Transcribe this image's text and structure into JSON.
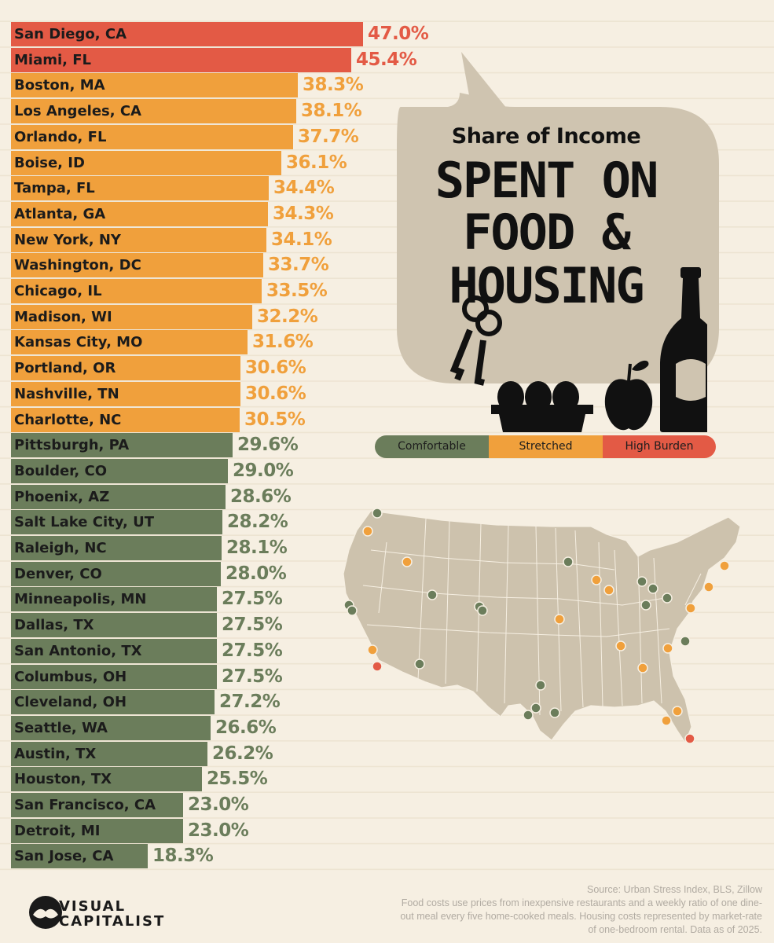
{
  "chart_data": {
    "type": "bar",
    "orientation": "horizontal",
    "title": "Share of Income",
    "subtitle": "SPENT ON FOOD & HOUSING",
    "categories": [
      "San Diego, CA",
      "Miami, FL",
      "Boston, MA",
      "Los Angeles, CA",
      "Orlando, FL",
      "Boise, ID",
      "Tampa, FL",
      "Atlanta, GA",
      "New York, NY",
      "Washington, DC",
      "Chicago, IL",
      "Madison, WI",
      "Kansas City, MO",
      "Portland, OR",
      "Nashville, TN",
      "Charlotte, NC",
      "Pittsburgh, PA",
      "Boulder, CO",
      "Phoenix, AZ",
      "Salt Lake City, UT",
      "Raleigh, NC",
      "Denver, CO",
      "Minneapolis, MN",
      "Dallas, TX",
      "San Antonio, TX",
      "Columbus, OH",
      "Cleveland, OH",
      "Seattle, WA",
      "Austin, TX",
      "Houston, TX",
      "San Francisco, CA",
      "Detroit, MI",
      "San Jose, CA"
    ],
    "values": [
      47.0,
      45.4,
      38.3,
      38.1,
      37.7,
      36.1,
      34.4,
      34.3,
      34.1,
      33.7,
      33.5,
      32.2,
      31.6,
      30.6,
      30.6,
      30.5,
      29.6,
      29.0,
      28.6,
      28.2,
      28.1,
      28.0,
      27.5,
      27.5,
      27.5,
      27.5,
      27.2,
      26.6,
      26.2,
      25.5,
      23.0,
      23.0,
      18.3
    ],
    "value_labels": [
      "47.0%",
      "45.4%",
      "38.3%",
      "38.1%",
      "37.7%",
      "36.1%",
      "34.4%",
      "34.3%",
      "34.1%",
      "33.7%",
      "33.5%",
      "32.2%",
      "31.6%",
      "30.6%",
      "30.6%",
      "30.5%",
      "29.6%",
      "29.0%",
      "28.6%",
      "28.2%",
      "28.1%",
      "28.0%",
      "27.5%",
      "27.5%",
      "27.5%",
      "27.5%",
      "27.2%",
      "26.6%",
      "26.2%",
      "25.5%",
      "23.0%",
      "23.0%",
      "18.3%"
    ],
    "categories_level": [
      "High Burden",
      "High Burden",
      "Stretched",
      "Stretched",
      "Stretched",
      "Stretched",
      "Stretched",
      "Stretched",
      "Stretched",
      "Stretched",
      "Stretched",
      "Stretched",
      "Stretched",
      "Stretched",
      "Stretched",
      "Stretched",
      "Comfortable",
      "Comfortable",
      "Comfortable",
      "Comfortable",
      "Comfortable",
      "Comfortable",
      "Comfortable",
      "Comfortable",
      "Comfortable",
      "Comfortable",
      "Comfortable",
      "Comfortable",
      "Comfortable",
      "Comfortable",
      "Comfortable",
      "Comfortable",
      "Comfortable"
    ],
    "xlim": [
      0,
      47.0
    ],
    "grid": true,
    "legend": {
      "placement": "right",
      "entries": [
        {
          "label": "Comfortable",
          "color": "#6b7d5b"
        },
        {
          "label": "Stretched",
          "color": "#f0a03c"
        },
        {
          "label": "High Burden",
          "color": "#e35a45"
        }
      ]
    }
  },
  "colors": {
    "Comfortable": "#6b7d5b",
    "Stretched": "#f0a03c",
    "High Burden": "#e35a45",
    "value_Comfortable": "#6b7d5b",
    "value_Stretched": "#f0a03c",
    "value_High Burden": "#e35a45",
    "background": "#f6efe2",
    "bubble": "#cfc4b0",
    "map_land": "#cdc2ad"
  },
  "title": {
    "top": "Share of Income",
    "line1": "SPENT ON",
    "line2": "FOOD &",
    "line3": "HOUSING"
  },
  "legend": {
    "comfortable": "Comfortable",
    "stretched": "Stretched",
    "high": "High Burden"
  },
  "map": {
    "markers": [
      {
        "city": "Seattle, WA",
        "level": "Comfortable"
      },
      {
        "city": "Portland, OR",
        "level": "Stretched"
      },
      {
        "city": "Boise, ID",
        "level": "Stretched"
      },
      {
        "city": "San Francisco, CA",
        "level": "Comfortable"
      },
      {
        "city": "San Jose, CA",
        "level": "Comfortable"
      },
      {
        "city": "Los Angeles, CA",
        "level": "Stretched"
      },
      {
        "city": "San Diego, CA",
        "level": "High Burden"
      },
      {
        "city": "Phoenix, AZ",
        "level": "Comfortable"
      },
      {
        "city": "Salt Lake City, UT",
        "level": "Comfortable"
      },
      {
        "city": "Boulder, CO",
        "level": "Comfortable"
      },
      {
        "city": "Denver, CO",
        "level": "Comfortable"
      },
      {
        "city": "Dallas, TX",
        "level": "Comfortable"
      },
      {
        "city": "Austin, TX",
        "level": "Comfortable"
      },
      {
        "city": "San Antonio, TX",
        "level": "Comfortable"
      },
      {
        "city": "Houston, TX",
        "level": "Comfortable"
      },
      {
        "city": "Minneapolis, MN",
        "level": "Comfortable"
      },
      {
        "city": "Kansas City, MO",
        "level": "Stretched"
      },
      {
        "city": "Madison, WI",
        "level": "Stretched"
      },
      {
        "city": "Chicago, IL",
        "level": "Stretched"
      },
      {
        "city": "Detroit, MI",
        "level": "Comfortable"
      },
      {
        "city": "Cleveland, OH",
        "level": "Comfortable"
      },
      {
        "city": "Columbus, OH",
        "level": "Comfortable"
      },
      {
        "city": "Pittsburgh, PA",
        "level": "Comfortable"
      },
      {
        "city": "Nashville, TN",
        "level": "Stretched"
      },
      {
        "city": "Atlanta, GA",
        "level": "Stretched"
      },
      {
        "city": "Charlotte, NC",
        "level": "Stretched"
      },
      {
        "city": "Raleigh, NC",
        "level": "Comfortable"
      },
      {
        "city": "Washington, DC",
        "level": "Stretched"
      },
      {
        "city": "New York, NY",
        "level": "Stretched"
      },
      {
        "city": "Boston, MA",
        "level": "Stretched"
      },
      {
        "city": "Orlando, FL",
        "level": "Stretched"
      },
      {
        "city": "Tampa, FL",
        "level": "Stretched"
      },
      {
        "city": "Miami, FL",
        "level": "High Burden"
      }
    ]
  },
  "logo": {
    "line1": "VISUAL",
    "line2": "CAPITALIST",
    "icon": "visual-capitalist-logo-icon"
  },
  "source": {
    "line": "Source: Urban Stress Index, BLS, Zillow",
    "note": "Food costs use prices from inexpensive restaurants and a weekly ratio of one dine-out meal every five home-cooked meals. Housing costs represented by market-rate of one-bedroom rental. Data as of 2025."
  },
  "icons": [
    "keys-icon",
    "egg-carton-icon",
    "apple-icon",
    "bottle-icon"
  ]
}
